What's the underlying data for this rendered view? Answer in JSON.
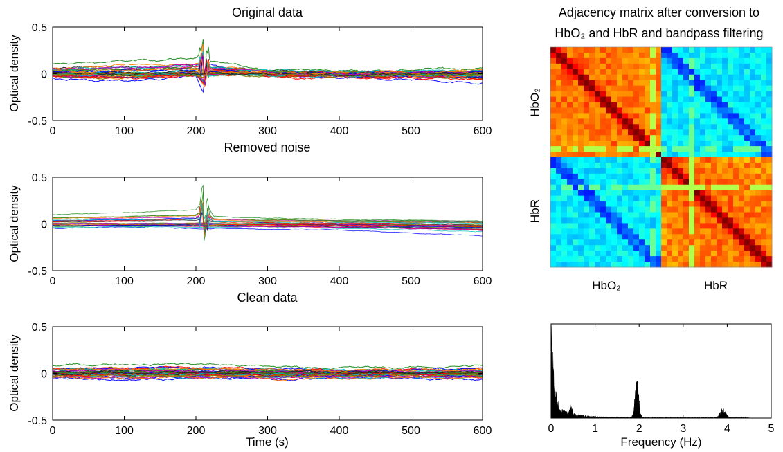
{
  "chart_data": [
    {
      "type": "line",
      "title": "Original data",
      "xlabel": "",
      "ylabel": "Optical density",
      "xlim": [
        0,
        600
      ],
      "ylim": [
        -0.5,
        0.5
      ],
      "xticks": [
        "0",
        "100",
        "200",
        "300",
        "400",
        "500",
        "600"
      ],
      "yticks": [
        "0.5",
        "0",
        "-0.5"
      ],
      "note_series": "many overlapping multi-colored channel traces near 0 with a spike near t=210 s",
      "series_colors": [
        "#1f8a1f",
        "#0000ff",
        "#ff0000",
        "#00bfbf",
        "#bf00bf",
        "#7f7f00",
        "#222222",
        "#ff7f00"
      ],
      "series": [
        {
          "x": [
            0,
            100,
            150,
            200,
            205,
            210,
            212,
            215,
            220,
            300,
            400,
            500,
            600
          ],
          "values": [
            0.1,
            0.13,
            0.15,
            0.17,
            0.2,
            0.38,
            -0.25,
            0.25,
            0.12,
            0.05,
            0.03,
            0.04,
            0.06
          ]
        },
        {
          "x": [
            0,
            100,
            200,
            210,
            215,
            300,
            400,
            500,
            600
          ],
          "values": [
            -0.05,
            -0.08,
            -0.02,
            -0.2,
            0.1,
            -0.03,
            -0.05,
            -0.06,
            -0.1
          ]
        },
        {
          "x": [
            0,
            100,
            200,
            300,
            400,
            500,
            600
          ],
          "values": [
            0.02,
            0.0,
            0.01,
            0.0,
            -0.01,
            0.0,
            0.01
          ]
        }
      ]
    },
    {
      "type": "line",
      "title": "Removed noise",
      "xlabel": "",
      "ylabel": "Optical density",
      "xlim": [
        0,
        600
      ],
      "ylim": [
        -0.5,
        0.5
      ],
      "xticks": [
        "0",
        "100",
        "200",
        "300",
        "400",
        "500",
        "600"
      ],
      "yticks": [
        "0.5",
        "0",
        "-0.5"
      ],
      "series": [
        {
          "x": [
            0,
            100,
            200,
            205,
            210,
            212,
            215,
            225,
            300,
            400,
            500,
            600
          ],
          "values": [
            0.1,
            0.12,
            0.15,
            0.2,
            0.37,
            -0.25,
            0.2,
            0.08,
            0.06,
            0.05,
            0.04,
            0.03
          ]
        },
        {
          "x": [
            0,
            100,
            200,
            300,
            400,
            500,
            600
          ],
          "values": [
            -0.05,
            -0.04,
            -0.05,
            -0.06,
            -0.07,
            -0.1,
            -0.13
          ]
        },
        {
          "x": [
            0,
            100,
            200,
            300,
            400,
            500,
            600
          ],
          "values": [
            0.0,
            0.0,
            0.0,
            -0.01,
            -0.02,
            -0.03,
            -0.04
          ]
        }
      ]
    },
    {
      "type": "line",
      "title": "Clean data",
      "xlabel": "Time (s)",
      "ylabel": "Optical density",
      "xlim": [
        0,
        600
      ],
      "ylim": [
        -0.5,
        0.5
      ],
      "xticks": [
        "0",
        "100",
        "200",
        "300",
        "400",
        "500",
        "600"
      ],
      "yticks": [
        "0.5",
        "0",
        "-0.5"
      ],
      "series": [
        {
          "x": [
            0,
            100,
            200,
            300,
            400,
            500,
            600
          ],
          "values": [
            0.08,
            0.1,
            0.1,
            0.07,
            0.06,
            0.06,
            0.08
          ]
        },
        {
          "x": [
            0,
            100,
            200,
            300,
            400,
            500,
            600
          ],
          "values": [
            -0.05,
            -0.06,
            -0.05,
            -0.06,
            -0.05,
            -0.05,
            -0.06
          ]
        },
        {
          "x": [
            0,
            100,
            200,
            300,
            400,
            500,
            600
          ],
          "values": [
            0.0,
            0.01,
            0.0,
            0.0,
            0.0,
            0.0,
            0.0
          ]
        }
      ]
    },
    {
      "type": "heatmap",
      "title_line1": "Adjacency matrix after conversion to",
      "title_line2": "HbO₂ and HbR and bandpass filtering",
      "row_labels": [
        "HbO₂",
        "HbR"
      ],
      "col_labels": [
        "HbO₂",
        "HbR"
      ],
      "size": 40,
      "colormap": "jet",
      "note_pattern": "high (red) within-block correlation, low (blue) between-block, dark red diagonal"
    },
    {
      "type": "area",
      "title": "",
      "xlabel": "Frequency (Hz)",
      "ylabel": "",
      "xlim": [
        0,
        5
      ],
      "xticks": [
        "0",
        "1",
        "2",
        "3",
        "4",
        "5"
      ],
      "peaks_hz": [
        0.0,
        0.45,
        1.95,
        3.9
      ],
      "peak_heights": [
        1.0,
        0.1,
        0.35,
        0.08
      ]
    }
  ]
}
